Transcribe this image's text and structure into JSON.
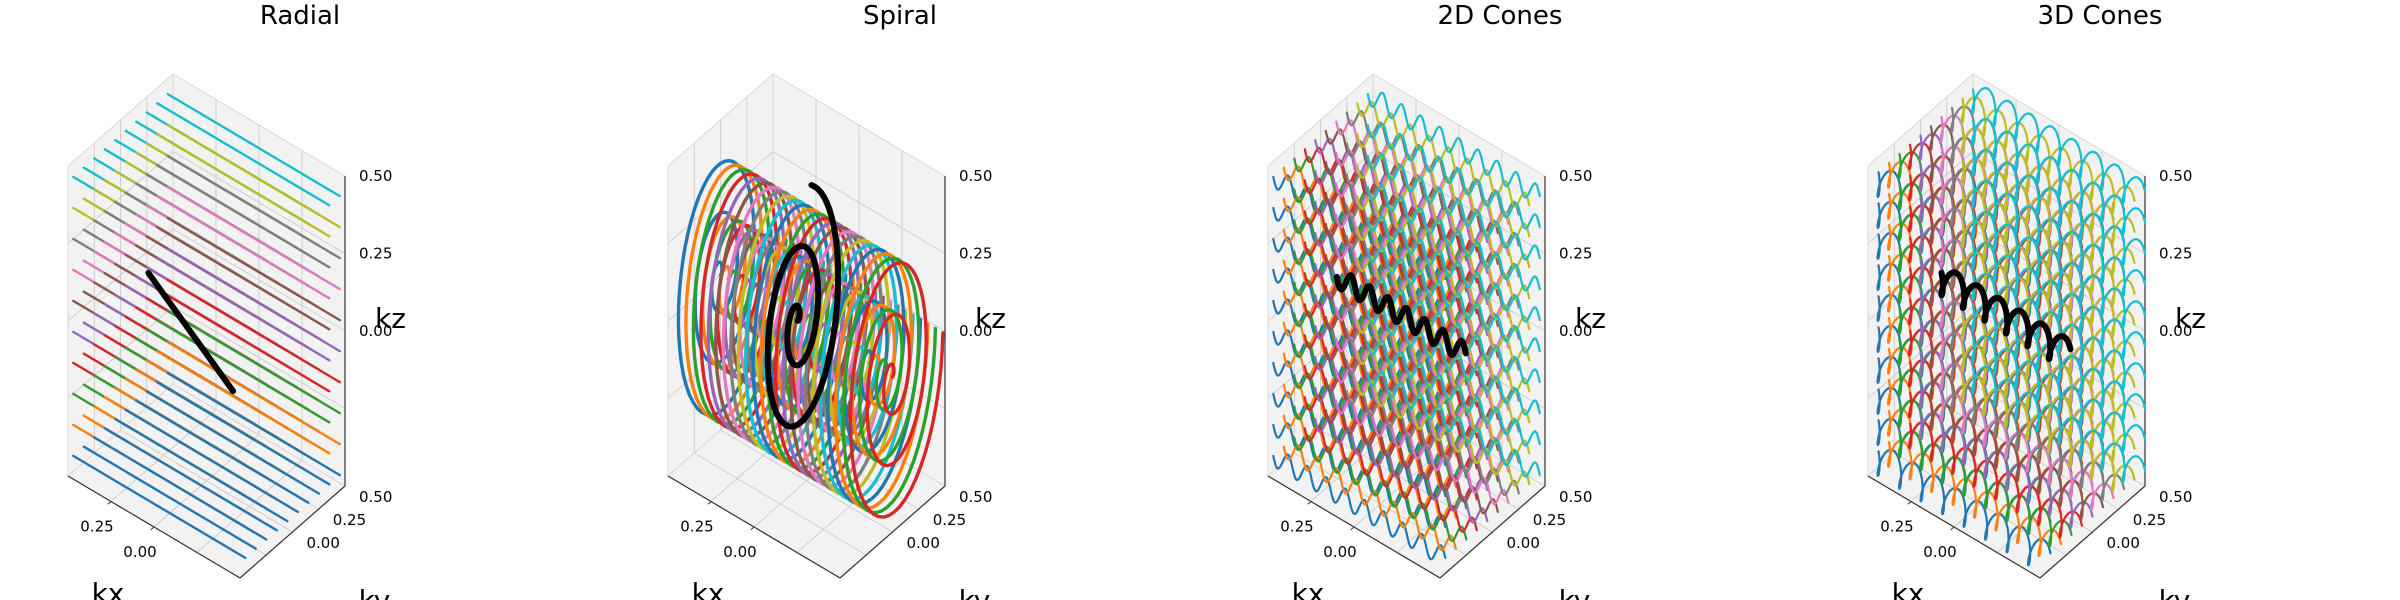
{
  "palette": [
    "#1f77b4",
    "#ff7f0e",
    "#2ca02c",
    "#d62728",
    "#9467bd",
    "#8c564b",
    "#e377c2",
    "#7f7f7f",
    "#bcbd22",
    "#17becf"
  ],
  "highlight_color": "#000000",
  "pane_color": "#f2f2f2",
  "chart_data": [
    {
      "type": "line3d",
      "trajectory": "radial",
      "title": "Radial",
      "xlabel": "kx",
      "ylabel": "ky",
      "zlabel": "kz",
      "xticks": [
        "0.00",
        "0.25"
      ],
      "yticks": [
        "0.00",
        "0.25",
        "0.50"
      ],
      "zticks": [
        "0.00",
        "0.25",
        "0.50"
      ],
      "xlim": [
        -0.5,
        0.5
      ],
      "ylim": [
        -0.5,
        0.5
      ],
      "zlim": [
        -0.5,
        0.5
      ],
      "grid": true
    },
    {
      "type": "line3d",
      "trajectory": "spiral",
      "title": "Spiral",
      "xlabel": "kx",
      "ylabel": "ky",
      "zlabel": "kz",
      "xticks": [
        "0.00",
        "0.25"
      ],
      "yticks": [
        "0.00",
        "0.25",
        "0.50"
      ],
      "zticks": [
        "0.00",
        "0.25",
        "0.50"
      ],
      "xlim": [
        -0.5,
        0.5
      ],
      "ylim": [
        -0.5,
        0.5
      ],
      "zlim": [
        -0.5,
        0.5
      ],
      "grid": true
    },
    {
      "type": "line3d",
      "trajectory": "2d-cones",
      "title": "2D Cones",
      "xlabel": "kx",
      "ylabel": "ky",
      "zlabel": "kz",
      "xticks": [
        "0.00",
        "0.25"
      ],
      "yticks": [
        "0.00",
        "0.25",
        "0.50"
      ],
      "zticks": [
        "0.00",
        "0.25",
        "0.50"
      ],
      "xlim": [
        -0.5,
        0.5
      ],
      "ylim": [
        -0.5,
        0.5
      ],
      "zlim": [
        -0.5,
        0.5
      ],
      "grid": true
    },
    {
      "type": "line3d",
      "trajectory": "3d-cones",
      "title": "3D Cones",
      "xlabel": "kx",
      "ylabel": "ky",
      "zlabel": "kz",
      "xticks": [
        "0.00",
        "0.25"
      ],
      "yticks": [
        "0.00",
        "0.25",
        "0.50"
      ],
      "zticks": [
        "0.00",
        "0.25",
        "0.50"
      ],
      "xlim": [
        -0.5,
        0.5
      ],
      "ylim": [
        -0.5,
        0.5
      ],
      "zlim": [
        -0.5,
        0.5
      ],
      "grid": true
    }
  ]
}
